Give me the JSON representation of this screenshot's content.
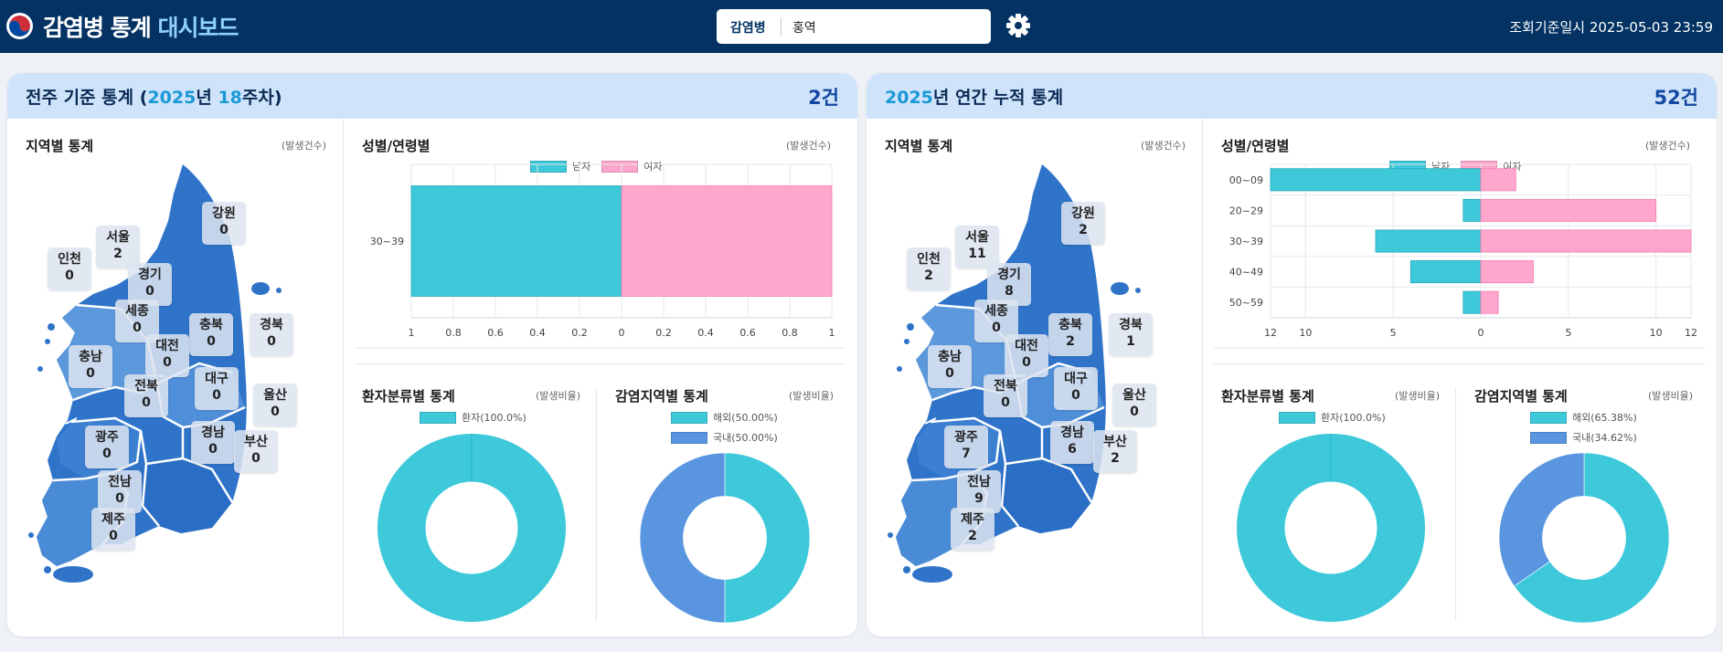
{
  "header": {
    "title_main": "감염병 통계",
    "title_accent": "대시보드",
    "search_label": "감염병",
    "search_value": "홍역",
    "ref_time": "조회기준일시 2025-05-03 23:59"
  },
  "labels": {
    "region_title": "지역별 통계",
    "region_unit": "(발생건수)",
    "gender_age_title": "성별/연령별",
    "gender_age_unit": "(발생건수)",
    "patient_title": "환자분류별 통계",
    "patient_unit": "(발생비율)",
    "infection_title": "감염지역별 통계",
    "infection_unit": "(발생비율)",
    "male": "남자",
    "female": "여자"
  },
  "colors": {
    "male": "#3ec9da",
    "female": "#ffa6cc",
    "patient": "#3ec9da",
    "overseas": "#3ec9da",
    "domestic": "#5a96e0"
  },
  "panels": [
    {
      "title_prefix": "전주 기준 통계 (",
      "title_year": "2025",
      "title_mid": "년 ",
      "title_week": "18",
      "title_suffix": "주차)",
      "count": "2건",
      "regions": {
        "gangwon": {
          "name": "강원",
          "value": "0"
        },
        "seoul": {
          "name": "서울",
          "value": "2"
        },
        "incheon": {
          "name": "인천",
          "value": "0"
        },
        "gyeonggi": {
          "name": "경기",
          "value": "0"
        },
        "sejong": {
          "name": "세종",
          "value": "0"
        },
        "chungbuk": {
          "name": "충북",
          "value": "0"
        },
        "gyeongbuk": {
          "name": "경북",
          "value": "0"
        },
        "daejeon": {
          "name": "대전",
          "value": "0"
        },
        "chungnam": {
          "name": "충남",
          "value": "0"
        },
        "jeonbuk": {
          "name": "전북",
          "value": "0"
        },
        "daegu": {
          "name": "대구",
          "value": "0"
        },
        "ulsan": {
          "name": "울산",
          "value": "0"
        },
        "gwangju": {
          "name": "광주",
          "value": "0"
        },
        "gyeongnam": {
          "name": "경남",
          "value": "0"
        },
        "busan": {
          "name": "부산",
          "value": "0"
        },
        "jeonnam": {
          "name": "전남",
          "value": "0"
        },
        "jeju": {
          "name": "제주",
          "value": "0"
        }
      },
      "patient_legend": [
        "환자(100.0%)"
      ],
      "infection_legend": [
        "해외(50.00%)",
        "국내(50.00%)"
      ]
    },
    {
      "title_prefix": "",
      "title_year": "2025",
      "title_mid": "년 연간 누적 통계",
      "title_week": "",
      "title_suffix": "",
      "count": "52건",
      "regions": {
        "gangwon": {
          "name": "강원",
          "value": "2"
        },
        "seoul": {
          "name": "서울",
          "value": "11"
        },
        "incheon": {
          "name": "인천",
          "value": "2"
        },
        "gyeonggi": {
          "name": "경기",
          "value": "8"
        },
        "sejong": {
          "name": "세종",
          "value": "0"
        },
        "chungbuk": {
          "name": "충북",
          "value": "2"
        },
        "gyeongbuk": {
          "name": "경북",
          "value": "1"
        },
        "daejeon": {
          "name": "대전",
          "value": "0"
        },
        "chungnam": {
          "name": "충남",
          "value": "0"
        },
        "jeonbuk": {
          "name": "전북",
          "value": "0"
        },
        "daegu": {
          "name": "대구",
          "value": "0"
        },
        "ulsan": {
          "name": "울산",
          "value": "0"
        },
        "gwangju": {
          "name": "광주",
          "value": "7"
        },
        "gyeongnam": {
          "name": "경남",
          "value": "6"
        },
        "busan": {
          "name": "부산",
          "value": "2"
        },
        "jeonnam": {
          "name": "전남",
          "value": "9"
        },
        "jeju": {
          "name": "제주",
          "value": "2"
        }
      },
      "patient_legend": [
        "환자(100.0%)"
      ],
      "infection_legend": [
        "해외(65.38%)",
        "국내(34.62%)"
      ]
    }
  ],
  "chart_data": [
    {
      "type": "bar",
      "orientation": "horizontal-diverging",
      "categories": [
        "30~39"
      ],
      "series": [
        {
          "name": "남자",
          "values": [
            1
          ]
        },
        {
          "name": "여자",
          "values": [
            1
          ]
        }
      ],
      "xlim": [
        -1,
        1
      ],
      "xticks": [
        "1",
        "0.8",
        "0.6",
        "0.4",
        "0.2",
        "0",
        "0.2",
        "0.4",
        "0.6",
        "0.8",
        "1"
      ],
      "legend": "top-center",
      "grid": true
    },
    {
      "type": "pie",
      "categories": [
        "환자"
      ],
      "values": [
        100.0
      ],
      "legend": "top-center"
    },
    {
      "type": "pie",
      "categories": [
        "해외",
        "국내"
      ],
      "values": [
        50.0,
        50.0
      ],
      "legend": "top-center"
    },
    {
      "type": "bar",
      "orientation": "horizontal-diverging",
      "categories": [
        "00~09",
        "20~29",
        "30~39",
        "40~49",
        "50~59"
      ],
      "series": [
        {
          "name": "남자",
          "values": [
            12,
            1,
            6,
            4,
            1
          ]
        },
        {
          "name": "여자",
          "values": [
            2,
            10,
            12,
            3,
            1
          ]
        }
      ],
      "xlim": [
        -12,
        12
      ],
      "xticks": [
        "12",
        "10",
        "5",
        "0",
        "5",
        "10",
        "12"
      ],
      "legend": "top-center",
      "grid": true
    },
    {
      "type": "pie",
      "categories": [
        "환자"
      ],
      "values": [
        100.0
      ],
      "legend": "top-center"
    },
    {
      "type": "pie",
      "categories": [
        "해외",
        "국내"
      ],
      "values": [
        65.38,
        34.62
      ],
      "legend": "top-center"
    }
  ]
}
